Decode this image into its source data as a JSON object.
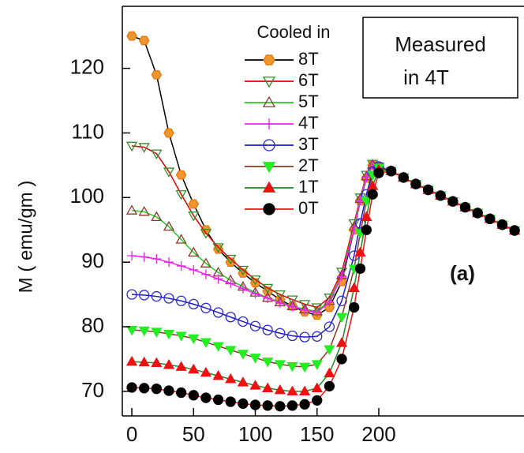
{
  "chart_data": {
    "type": "line",
    "y_label": "M ( emu/gm )",
    "legend_title": "Cooled in",
    "annotation": [
      "Measured",
      "in 4T"
    ],
    "panel_label": "(a)",
    "xlim": [
      -7.7,
      317.6
    ],
    "ylim": [
      66.2,
      129.6
    ],
    "xticks": [
      0,
      50,
      100,
      150,
      200
    ],
    "yticks": [
      70,
      80,
      90,
      100,
      110,
      120
    ],
    "x": [
      0,
      10,
      20,
      30,
      40,
      50,
      60,
      70,
      80,
      90,
      100,
      110,
      120,
      130,
      140,
      150,
      160,
      170,
      180,
      185,
      190,
      195,
      200,
      210,
      220,
      230,
      240,
      250,
      260,
      270,
      280,
      290,
      300,
      310
    ],
    "series": [
      {
        "name": "8T",
        "color": "#000000",
        "marker": "hexagon",
        "marker_color": "#f0962e",
        "filled": true,
        "values": [
          125,
          124.3,
          119,
          110,
          103.5,
          99,
          95,
          92,
          90,
          88.3,
          86.8,
          85.5,
          84.2,
          83.2,
          82.3,
          81.8,
          83,
          87,
          95,
          99.5,
          103,
          105,
          104.8,
          104.1,
          103.1,
          102.1,
          101.2,
          100.3,
          99.4,
          98.5,
          97.6,
          96.7,
          95.8,
          94.9
        ]
      },
      {
        "name": "6T",
        "color": "#e00000",
        "marker": "triangle-down",
        "marker_color": "#3a8a2a",
        "filled": false,
        "values": [
          108,
          107.8,
          106.8,
          104,
          100.5,
          97.2,
          94.5,
          92.3,
          90.5,
          88.8,
          87.3,
          86,
          85,
          84.2,
          83.5,
          83,
          84.5,
          88.5,
          96,
          100,
          103.5,
          105.2,
          104.8,
          104.1,
          103.1,
          102.1,
          101.2,
          100.3,
          99.4,
          98.5,
          97.6,
          96.7,
          95.8,
          94.9
        ]
      },
      {
        "name": "5T",
        "color": "#22cc22",
        "marker": "triangle-up",
        "marker_color": "#8b3a2a",
        "filled": false,
        "values": [
          98,
          97.8,
          97,
          95.5,
          93.5,
          91.5,
          89.8,
          88.4,
          87.2,
          86.2,
          85.3,
          84.5,
          83.8,
          83.2,
          82.7,
          82.4,
          84,
          88,
          95.5,
          99.8,
          103.3,
          105.1,
          104.8,
          104.1,
          103.1,
          102.1,
          101.2,
          100.3,
          99.4,
          98.5,
          97.6,
          96.7,
          95.8,
          94.9
        ]
      },
      {
        "name": "4T",
        "color": "#ee22ee",
        "marker": "plus",
        "marker_color": "#ee22ee",
        "filled": false,
        "values": [
          91,
          90.8,
          90.5,
          90,
          89.4,
          88.8,
          88.1,
          87.4,
          86.7,
          85.9,
          85.1,
          84.4,
          83.7,
          83.1,
          82.6,
          82.2,
          83.8,
          87.8,
          95,
          99.5,
          103.2,
          105,
          104.8,
          104.1,
          103.1,
          102.1,
          101.2,
          100.3,
          99.4,
          98.5,
          97.6,
          96.7,
          95.8,
          94.9
        ]
      },
      {
        "name": "3T",
        "color": "#1a1acc",
        "marker": "circle",
        "marker_color": "#2a2acc",
        "filled": false,
        "values": [
          85,
          84.9,
          84.7,
          84.4,
          84,
          83.5,
          82.9,
          82.2,
          81.5,
          80.8,
          80.1,
          79.5,
          79,
          78.6,
          78.4,
          78.5,
          80,
          84,
          91,
          96,
          100.5,
          104,
          104.8,
          104.1,
          103.1,
          102.1,
          101.2,
          100.3,
          99.4,
          98.5,
          97.6,
          96.7,
          95.8,
          94.9
        ]
      },
      {
        "name": "2T",
        "color": "#8b3a2a",
        "marker": "triangle-down",
        "marker_color": "#22ee22",
        "filled": true,
        "values": [
          79.5,
          79.4,
          79.2,
          78.9,
          78.6,
          78.2,
          77.6,
          77,
          76.4,
          75.8,
          75.2,
          74.6,
          74.2,
          73.9,
          73.8,
          74.2,
          76.5,
          81.5,
          89,
          94.5,
          99.5,
          103.5,
          104.6,
          104.1,
          103.1,
          102.1,
          101.2,
          100.3,
          99.4,
          98.5,
          97.6,
          96.7,
          95.8,
          94.9
        ]
      },
      {
        "name": "1T",
        "color": "#228822",
        "marker": "triangle-up",
        "marker_color": "#ee1111",
        "filled": true,
        "values": [
          74.6,
          74.5,
          74.4,
          74.1,
          73.8,
          73.4,
          72.9,
          72.4,
          71.9,
          71.4,
          70.9,
          70.5,
          70.2,
          70,
          70,
          70.5,
          72.8,
          77.5,
          86,
          91.5,
          97,
          101.8,
          104.3,
          104.1,
          103.1,
          102.1,
          101.2,
          100.3,
          99.4,
          98.5,
          97.6,
          96.7,
          95.8,
          94.9
        ]
      },
      {
        "name": "0T",
        "color": "#ee1111",
        "marker": "circle",
        "marker_color": "#000000",
        "filled": true,
        "values": [
          70.6,
          70.5,
          70.4,
          70.1,
          69.8,
          69.4,
          69,
          68.7,
          68.4,
          68.1,
          67.9,
          67.8,
          67.7,
          67.8,
          68,
          68.6,
          70.8,
          75,
          83,
          89,
          95,
          100.5,
          103.8,
          104.1,
          103.1,
          102.1,
          101.2,
          100.3,
          99.4,
          98.5,
          97.6,
          96.7,
          95.8,
          94.9
        ]
      }
    ]
  }
}
